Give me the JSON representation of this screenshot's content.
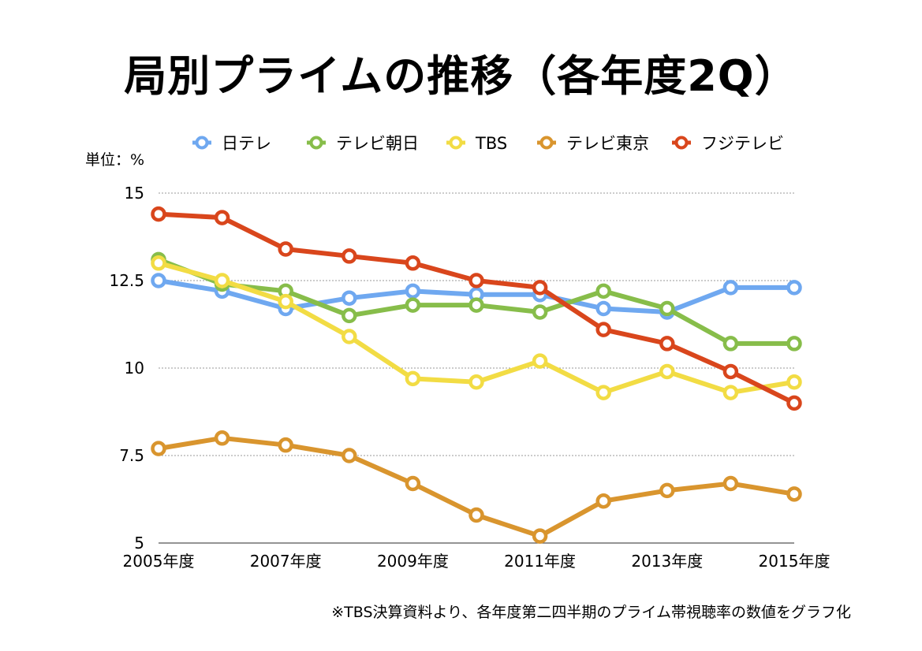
{
  "chart_data": {
    "type": "line",
    "title": "局別プライムの推移（各年度2Q）",
    "ylabel": "単位：%",
    "footnote": "※TBS決算資料より、各年度第二四半期のプライム帯視聴率の数値をグラフ化",
    "x": [
      2005,
      2006,
      2007,
      2008,
      2009,
      2010,
      2011,
      2012,
      2013,
      2014,
      2015
    ],
    "x_tick_labels": [
      "2005年度",
      "2007年度",
      "2009年度",
      "2011年度",
      "2013年度",
      "2015年度"
    ],
    "x_tick_values": [
      2005,
      2007,
      2009,
      2011,
      2013,
      2015
    ],
    "ylim": [
      5,
      15
    ],
    "y_ticks": [
      5,
      7.5,
      10,
      12.5,
      15
    ],
    "y_tick_labels": [
      "5",
      "7.5",
      "10",
      "12.5",
      "15"
    ],
    "grid": "horizontal dotted",
    "legend_position": "top",
    "series": [
      {
        "name": "日テレ",
        "color": "#6fa8f0",
        "values": [
          12.5,
          12.2,
          11.7,
          12.0,
          12.2,
          12.1,
          12.1,
          11.7,
          11.6,
          12.3,
          12.3
        ]
      },
      {
        "name": "テレビ朝日",
        "color": "#87bd4a",
        "values": [
          13.1,
          12.4,
          12.2,
          11.5,
          11.8,
          11.8,
          11.6,
          12.2,
          11.7,
          10.7,
          10.7
        ]
      },
      {
        "name": "TBS",
        "color": "#f2dc44",
        "values": [
          13.0,
          12.5,
          11.9,
          10.9,
          9.7,
          9.6,
          10.2,
          9.3,
          9.9,
          9.3,
          9.6
        ]
      },
      {
        "name": "テレビ東京",
        "color": "#d9952e",
        "values": [
          7.7,
          8.0,
          7.8,
          7.5,
          6.7,
          5.8,
          5.2,
          6.2,
          6.5,
          6.7,
          6.4
        ]
      },
      {
        "name": "フジテレビ",
        "color": "#d9461c",
        "values": [
          14.4,
          14.3,
          13.4,
          13.2,
          13.0,
          12.5,
          12.3,
          11.1,
          10.7,
          9.9,
          9.0
        ]
      }
    ]
  }
}
